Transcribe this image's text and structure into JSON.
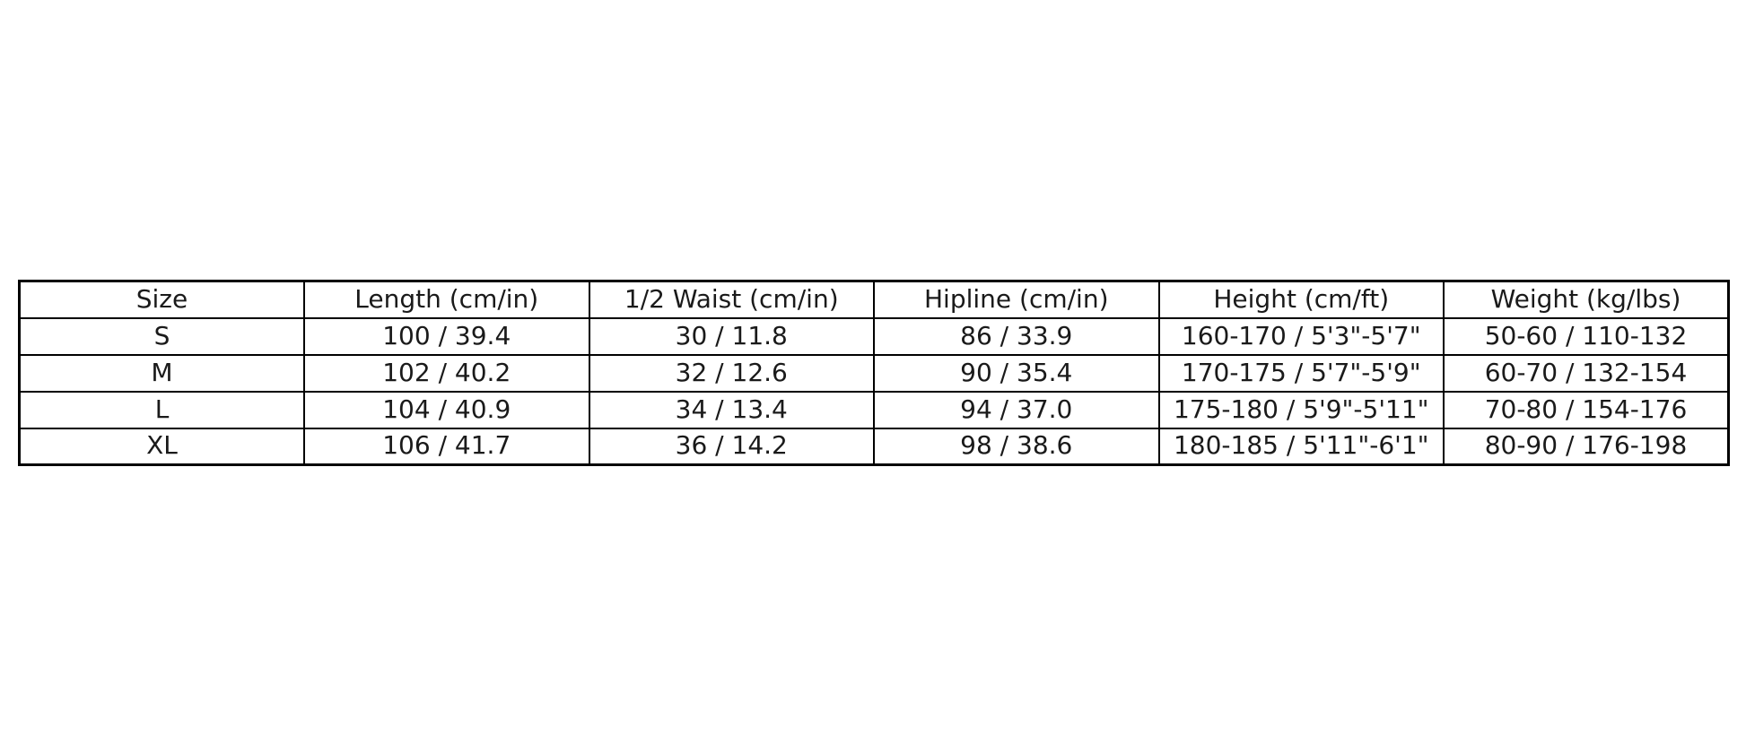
{
  "page": {
    "background_color": "#ffffff",
    "border_color": "#000000",
    "text_color": "#1a1a1a"
  },
  "chart_data": {
    "type": "table",
    "title": "",
    "columns": [
      "Size",
      "Length (cm/in)",
      "1/2 Waist (cm/in)",
      "Hipline (cm/in)",
      "Height (cm/ft)",
      "Weight (kg/lbs)"
    ],
    "rows": [
      [
        "S",
        "100 / 39.4",
        "30 / 11.8",
        "86 / 33.9",
        "160-170 / 5'3\"-5'7\"",
        "50-60 / 110-132"
      ],
      [
        "M",
        "102 / 40.2",
        "32 / 12.6",
        "90 / 35.4",
        "170-175 / 5'7\"-5'9\"",
        "60-70 / 132-154"
      ],
      [
        "L",
        "104 / 40.9",
        "34 / 13.4",
        "94 / 37.0",
        "175-180 / 5'9\"-5'11\"",
        "70-80 / 154-176"
      ],
      [
        "XL",
        "106 / 41.7",
        "36 / 14.2",
        "98 / 38.6",
        "180-185 / 5'11\"-6'1\"",
        "80-90 / 176-198"
      ]
    ],
    "layout": {
      "grid": true,
      "header_row": true,
      "cell_alignment": "center"
    }
  }
}
